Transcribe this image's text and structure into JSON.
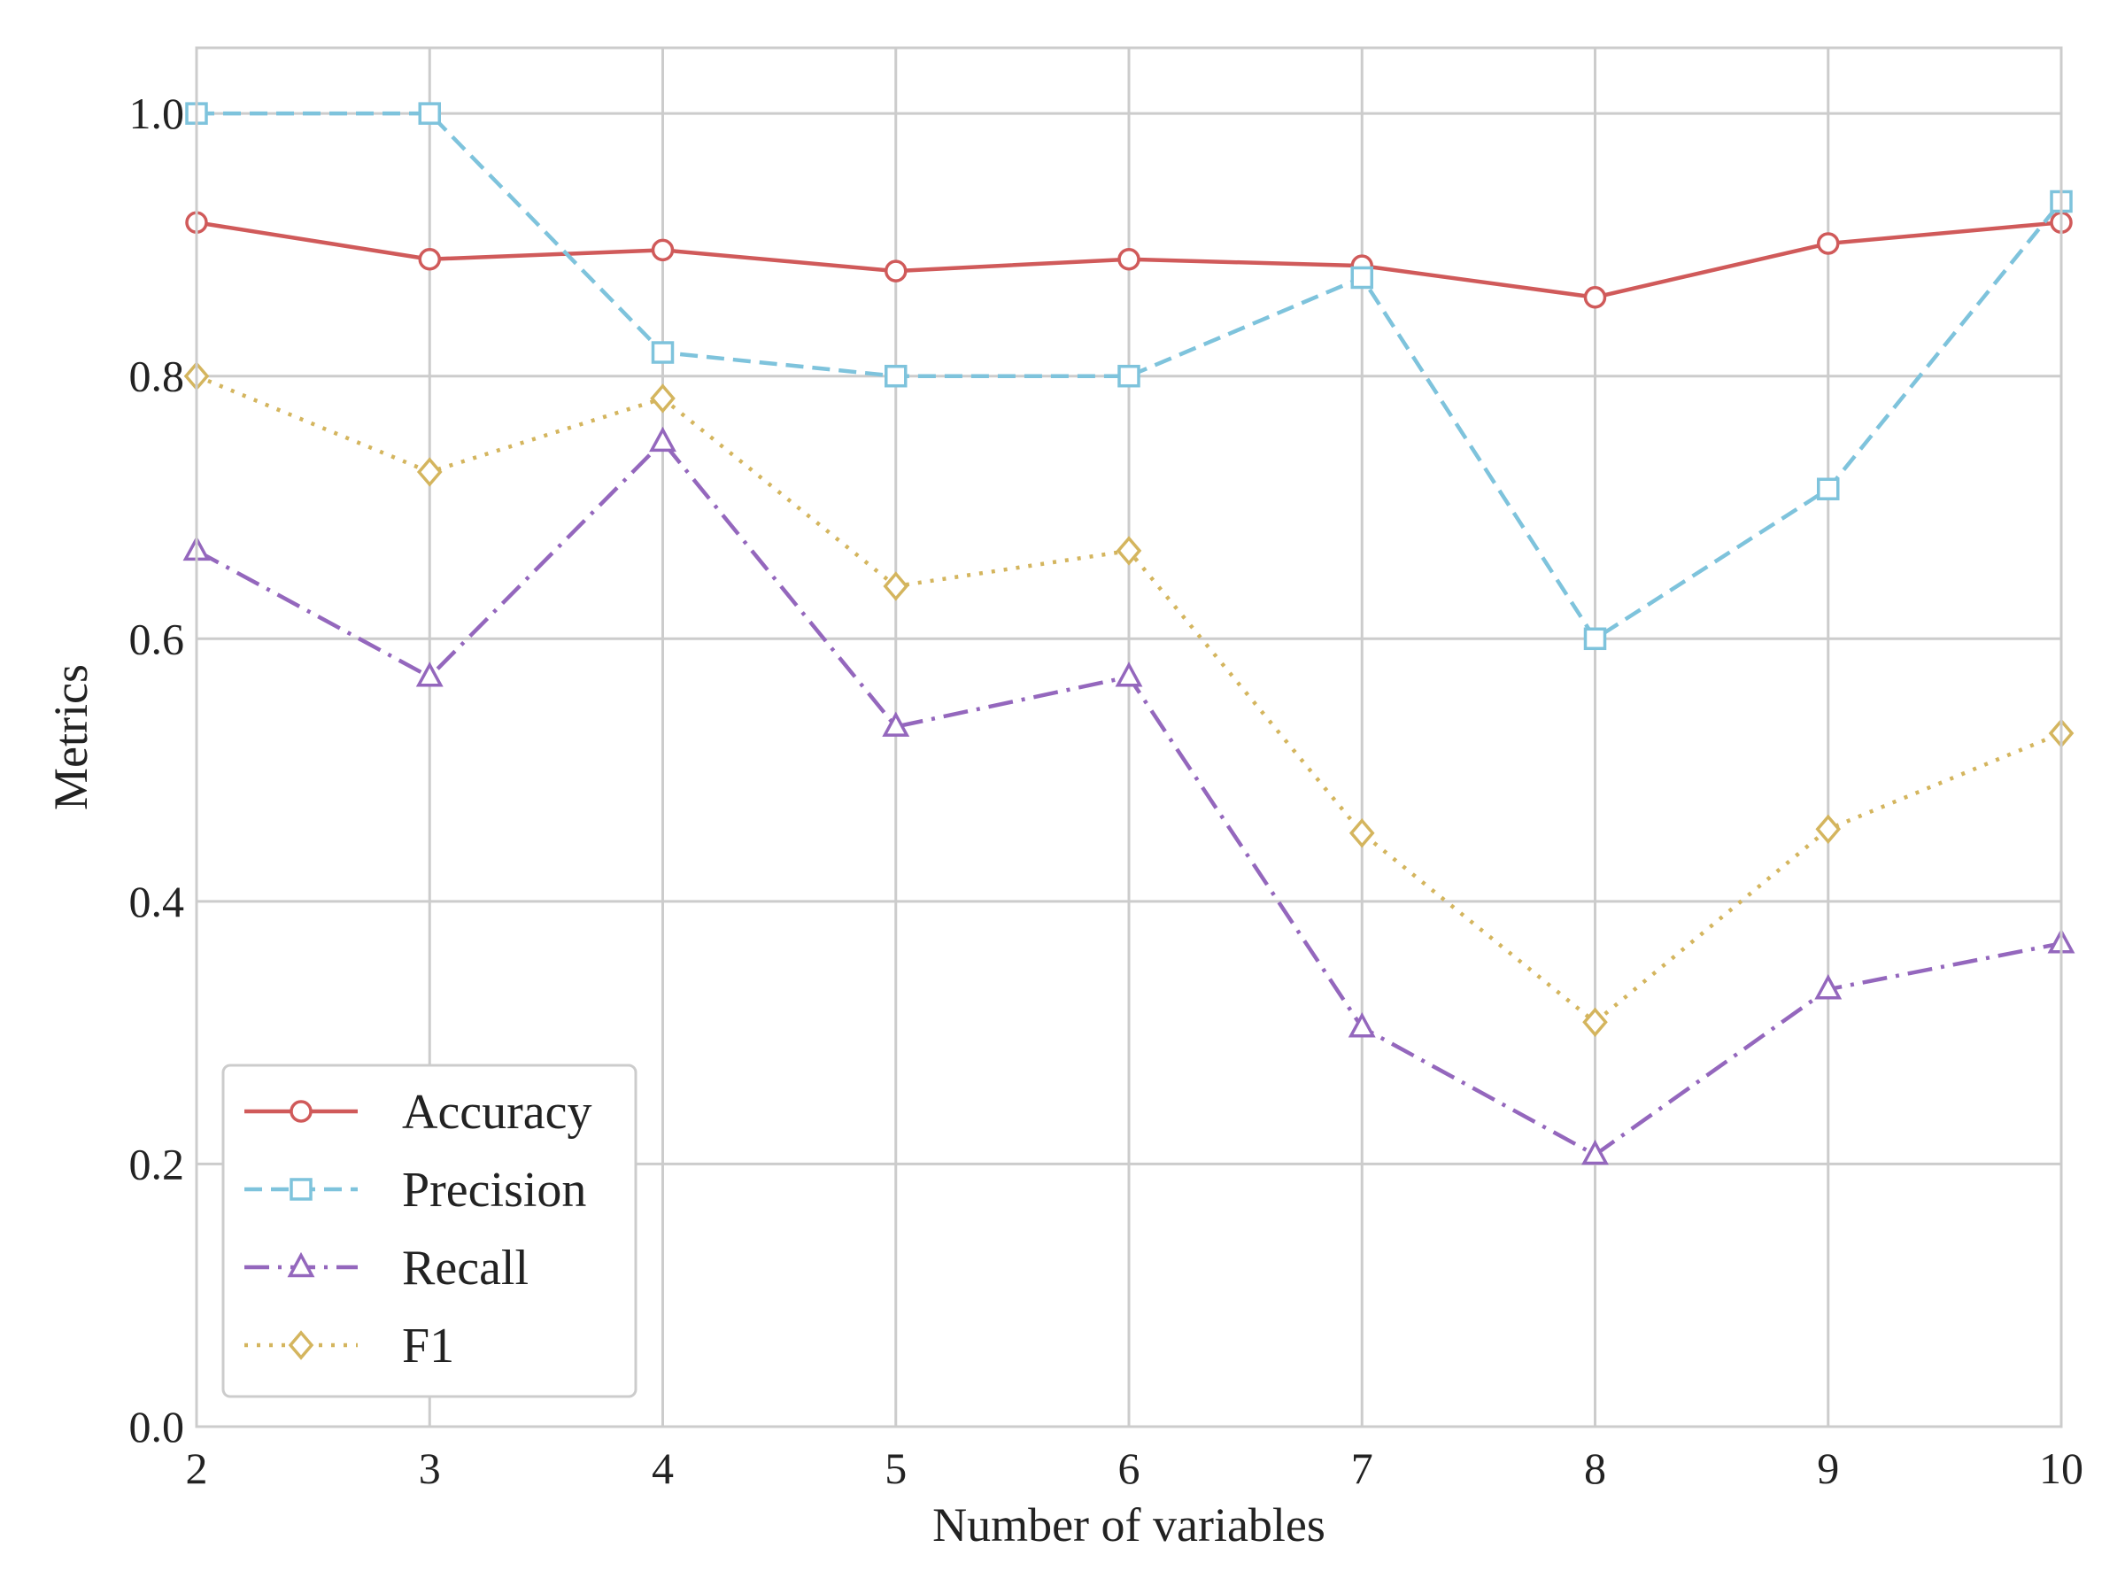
{
  "chart_data": {
    "type": "line",
    "title": "",
    "xlabel": "Number of variables",
    "ylabel": "Metrics",
    "x": [
      2,
      3,
      4,
      5,
      6,
      7,
      8,
      9,
      10
    ],
    "xlim": [
      2,
      10
    ],
    "ylim": [
      0.0,
      1.05
    ],
    "x_ticks": [
      "2",
      "3",
      "4",
      "5",
      "6",
      "7",
      "8",
      "9",
      "10"
    ],
    "y_ticks": [
      {
        "value": 0.0,
        "label": "0.0"
      },
      {
        "value": 0.2,
        "label": "0.2"
      },
      {
        "value": 0.4,
        "label": "0.4"
      },
      {
        "value": 0.6,
        "label": "0.6"
      },
      {
        "value": 0.8,
        "label": "0.8"
      },
      {
        "value": 1.0,
        "label": "1.0"
      }
    ],
    "grid": true,
    "legend_position": "lower-left",
    "series": [
      {
        "name": "Accuracy",
        "color": "#d05a5a",
        "style": "solid",
        "marker": "circle",
        "values": [
          0.917,
          0.889,
          0.896,
          0.88,
          0.889,
          0.884,
          0.86,
          0.901,
          0.917
        ]
      },
      {
        "name": "Precision",
        "color": "#7ec3dc",
        "style": "dashed",
        "marker": "square",
        "values": [
          1.0,
          1.0,
          0.818,
          0.8,
          0.8,
          0.875,
          0.6,
          0.714,
          0.933
        ]
      },
      {
        "name": "Recall",
        "color": "#9467bd",
        "style": "dashdot",
        "marker": "triangle",
        "values": [
          0.667,
          0.571,
          0.75,
          0.533,
          0.571,
          0.304,
          0.207,
          0.333,
          0.368
        ]
      },
      {
        "name": "F1",
        "color": "#d4b55e",
        "style": "dotted",
        "marker": "diamond",
        "values": [
          0.8,
          0.727,
          0.783,
          0.64,
          0.667,
          0.452,
          0.308,
          0.455,
          0.528
        ]
      }
    ]
  }
}
